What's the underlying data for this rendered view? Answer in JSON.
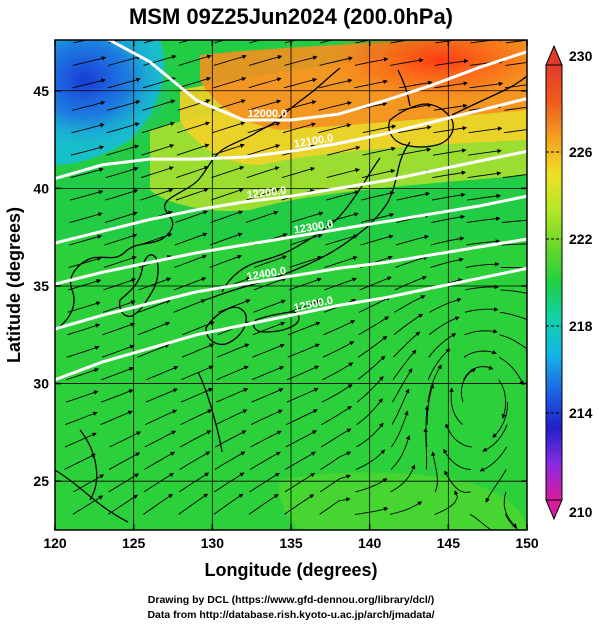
{
  "title": "MSM 09Z25Jun2024 (200.0hPa)",
  "xlabel": "Longitude (degrees)",
  "ylabel": "Latitude  (degrees)",
  "x_ticks": [
    "120",
    "125",
    "130",
    "135",
    "140",
    "145",
    "150"
  ],
  "y_ticks": [
    "25",
    "30",
    "35",
    "40",
    "45"
  ],
  "colorbar": {
    "ticks": [
      "230",
      "226",
      "222",
      "218",
      "214",
      "210"
    ],
    "min": 210,
    "max": 230,
    "colors": [
      "#d81b9a",
      "#8a2be2",
      "#2020c8",
      "#1e64e6",
      "#14b4e6",
      "#10d2aa",
      "#20d040",
      "#6ad82a",
      "#b4e628",
      "#f0e024",
      "#f4a020",
      "#f05a1e",
      "#e03a2a"
    ]
  },
  "contour_labels": [
    "12000.0",
    "12100.0",
    "12200.0",
    "12300.0",
    "12400.0",
    "12500.0"
  ],
  "credits": {
    "line1": "Drawing by DCL (https://www.gfd-dennou.org/library/dcl/)",
    "line2": "Data from http://database.rish.kyoto-u.ac.jp/arch/jmadata/"
  },
  "chart_data": {
    "type": "heatmap",
    "title": "MSM 09Z25Jun2024 (200.0hPa)",
    "xlabel": "Longitude (degrees)",
    "ylabel": "Latitude  (degrees)",
    "xlim": [
      120,
      150
    ],
    "ylim": [
      22.5,
      47.6
    ],
    "x_ticks": [
      120,
      125,
      130,
      135,
      140,
      145,
      150
    ],
    "y_ticks": [
      25,
      30,
      35,
      40,
      45
    ],
    "colorbar_range": [
      210,
      230
    ],
    "colorbar_ticks": [
      210,
      214,
      218,
      222,
      226,
      230
    ],
    "field": "temperature",
    "contours": [
      {
        "label": "12000.0",
        "lon": [
          120,
          123,
          126,
          129,
          132,
          135,
          138,
          141,
          144,
          147,
          150
        ],
        "lat": [
          48.5,
          47.8,
          46.5,
          44.5,
          43.5,
          43.5,
          43.8,
          44.5,
          45.3,
          46.2,
          47.0
        ]
      },
      {
        "label": "12100.0",
        "lon": [
          120,
          123,
          126,
          129,
          132,
          135,
          138,
          141,
          144,
          147,
          150
        ],
        "lat": [
          40.5,
          41.2,
          41.5,
          41.5,
          41.6,
          41.9,
          42.3,
          42.8,
          43.4,
          44.0,
          44.6
        ]
      },
      {
        "label": "12200.0",
        "lon": [
          120,
          123,
          126,
          129,
          132,
          135,
          138,
          141,
          144,
          147,
          150
        ],
        "lat": [
          37.2,
          37.8,
          38.4,
          38.9,
          39.3,
          39.6,
          40.0,
          40.4,
          40.9,
          41.4,
          41.9
        ]
      },
      {
        "label": "12300.0",
        "lon": [
          120,
          123,
          126,
          129,
          132,
          135,
          138,
          141,
          144,
          147,
          150
        ],
        "lat": [
          35.1,
          35.7,
          36.2,
          36.7,
          37.1,
          37.5,
          37.9,
          38.3,
          38.7,
          39.1,
          39.6
        ]
      },
      {
        "label": "12400.0",
        "lon": [
          120,
          123,
          126,
          129,
          132,
          135,
          138,
          141,
          144,
          147,
          150
        ],
        "lat": [
          32.8,
          33.5,
          34.1,
          34.7,
          35.1,
          35.5,
          35.9,
          36.2,
          36.6,
          37.0,
          37.4
        ]
      },
      {
        "label": "12500.0",
        "lon": [
          120,
          123,
          126,
          129,
          132,
          135,
          138,
          141,
          144,
          147,
          150
        ],
        "lat": [
          30.2,
          31.1,
          31.8,
          32.5,
          33.0,
          33.5,
          34.0,
          34.4,
          34.9,
          35.4,
          35.9
        ]
      }
    ],
    "anticyclone_center": {
      "lon": 147,
      "lat": 29.5
    }
  }
}
